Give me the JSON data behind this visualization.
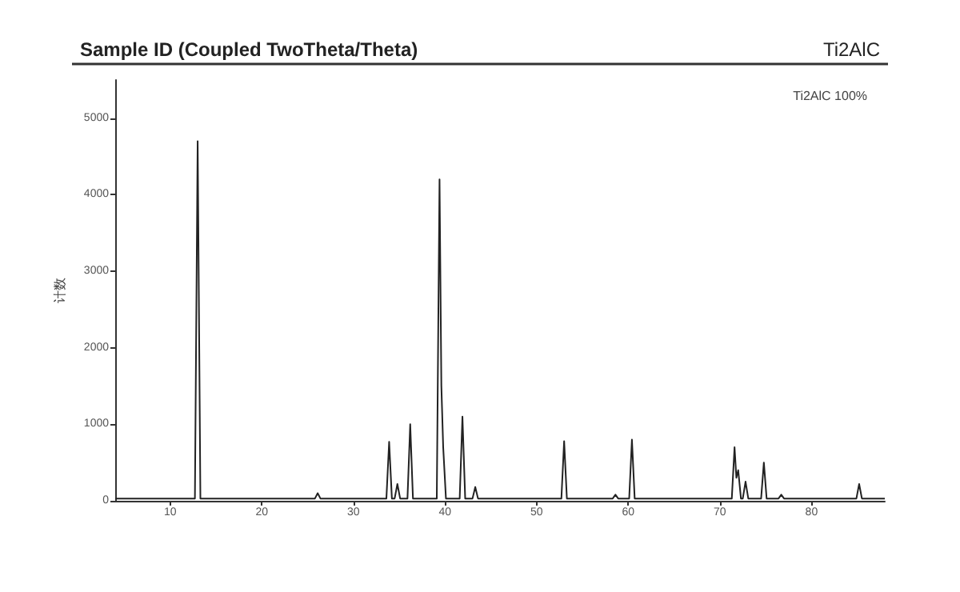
{
  "chart_data": {
    "type": "line",
    "title": "Sample ID (Coupled TwoTheta/Theta)",
    "subtitle": "Ti2AlC",
    "ylabel": "计数",
    "annotations": [
      "Ti2AlC 100%"
    ],
    "series": [
      {
        "color": "#222222",
        "x": [
          4,
          12.7,
          13.0,
          13.3,
          25.8,
          26.1,
          26.4,
          33.6,
          33.9,
          34.2,
          34.5,
          34.8,
          35.1,
          35.9,
          36.2,
          36.5,
          39.1,
          39.4,
          39.6,
          39.8,
          40.1,
          41.6,
          41.9,
          42.2,
          43.0,
          43.3,
          43.6,
          52.7,
          53.0,
          53.3,
          58.3,
          58.6,
          58.9,
          60.1,
          60.4,
          60.7,
          71.3,
          71.6,
          71.8,
          72.0,
          72.3,
          72.5,
          72.8,
          73.1,
          74.5,
          74.8,
          75.1,
          76.4,
          76.7,
          77.0,
          84.9,
          85.2,
          85.5,
          88
        ],
        "values": [
          30,
          30,
          4700,
          30,
          30,
          100,
          30,
          30,
          770,
          30,
          30,
          220,
          30,
          30,
          1000,
          30,
          30,
          4200,
          1500,
          700,
          30,
          30,
          1100,
          30,
          30,
          180,
          30,
          30,
          780,
          30,
          30,
          80,
          30,
          30,
          800,
          30,
          30,
          700,
          300,
          400,
          30,
          30,
          250,
          30,
          30,
          500,
          30,
          30,
          80,
          30,
          30,
          220,
          30,
          30
        ]
      }
    ],
    "xlim": [
      4,
      88
    ],
    "xticks": [
      10,
      20,
      30,
      40,
      50,
      60,
      70,
      80
    ],
    "ylim": [
      0,
      5500
    ],
    "yticks": [
      0,
      1000,
      2000,
      3000,
      4000,
      5000
    ],
    "grid": false,
    "marker": "none",
    "line_style": "solid"
  }
}
